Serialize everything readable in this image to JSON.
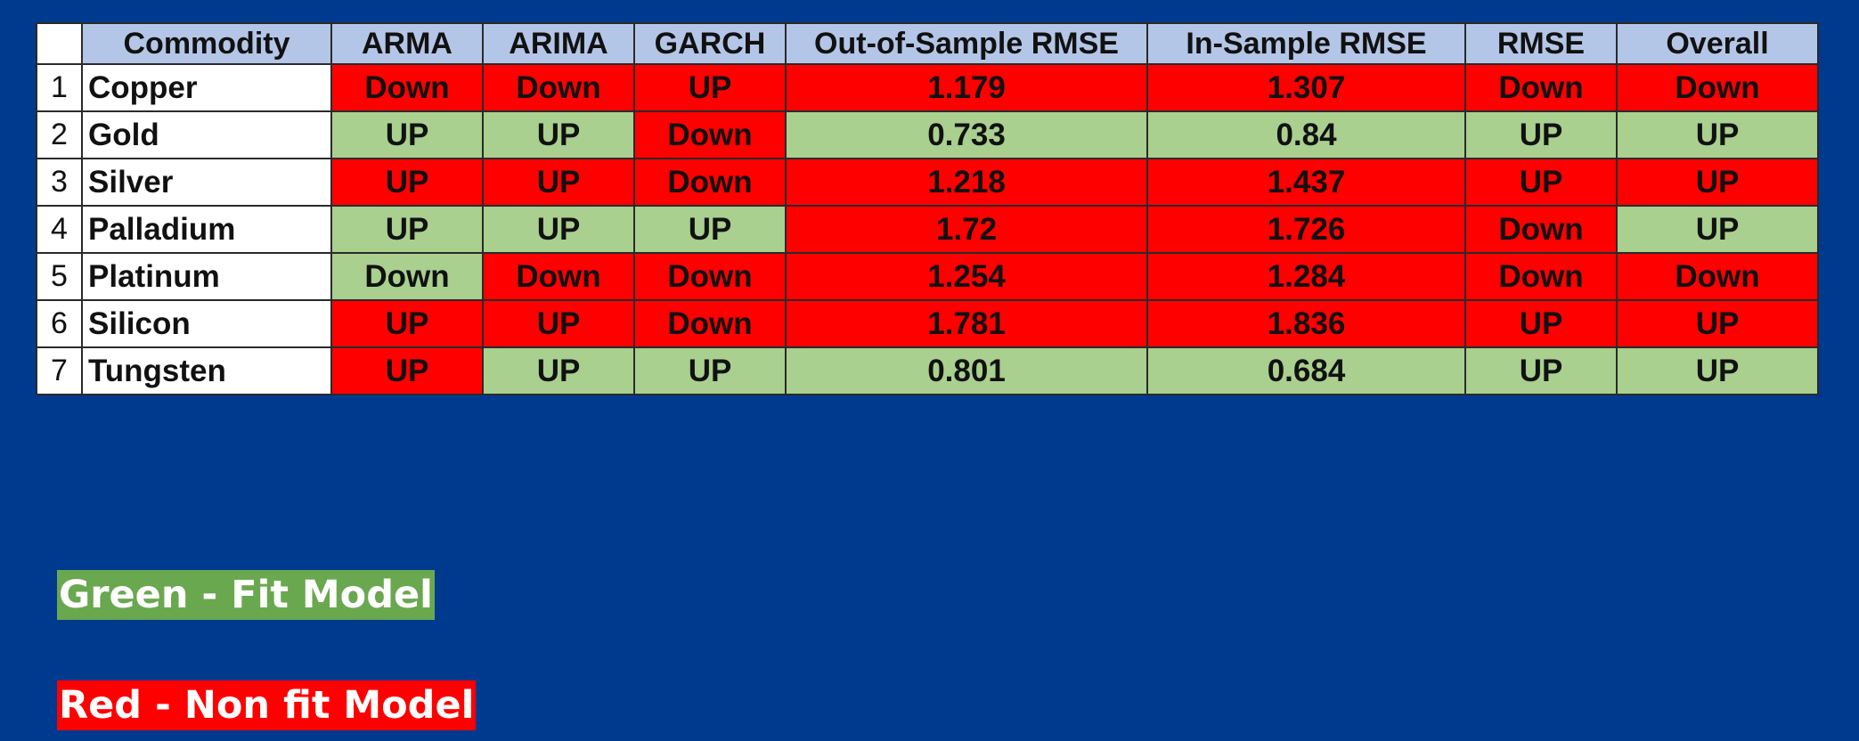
{
  "table": {
    "headers": [
      "Commodity",
      "ARMA",
      "ARIMA",
      "GARCH",
      "Out-of-Sample RMSE",
      "In-Sample RMSE",
      "RMSE",
      "Overall"
    ],
    "rows": [
      {
        "num": "1",
        "name": "Copper",
        "cells": [
          {
            "text": "Down",
            "status": "red"
          },
          {
            "text": "Down",
            "status": "red"
          },
          {
            "text": "UP",
            "status": "red"
          },
          {
            "text": "1.179",
            "status": "red"
          },
          {
            "text": "1.307",
            "status": "red"
          },
          {
            "text": "Down",
            "status": "red"
          },
          {
            "text": "Down",
            "status": "red"
          }
        ]
      },
      {
        "num": "2",
        "name": "Gold",
        "cells": [
          {
            "text": "UP",
            "status": "green"
          },
          {
            "text": "UP",
            "status": "green"
          },
          {
            "text": "Down",
            "status": "red"
          },
          {
            "text": "0.733",
            "status": "green"
          },
          {
            "text": "0.84",
            "status": "green"
          },
          {
            "text": "UP",
            "status": "green"
          },
          {
            "text": "UP",
            "status": "green"
          }
        ]
      },
      {
        "num": "3",
        "name": "Silver",
        "cells": [
          {
            "text": "UP",
            "status": "red"
          },
          {
            "text": "UP",
            "status": "red"
          },
          {
            "text": "Down",
            "status": "red"
          },
          {
            "text": "1.218",
            "status": "red"
          },
          {
            "text": "1.437",
            "status": "red"
          },
          {
            "text": "UP",
            "status": "red"
          },
          {
            "text": "UP",
            "status": "red"
          }
        ]
      },
      {
        "num": "4",
        "name": "Palladium",
        "cells": [
          {
            "text": "UP",
            "status": "green"
          },
          {
            "text": "UP",
            "status": "green"
          },
          {
            "text": "UP",
            "status": "green"
          },
          {
            "text": "1.72",
            "status": "red"
          },
          {
            "text": "1.726",
            "status": "red"
          },
          {
            "text": "Down",
            "status": "red"
          },
          {
            "text": "UP",
            "status": "green"
          }
        ]
      },
      {
        "num": "5",
        "name": "Platinum",
        "cells": [
          {
            "text": "Down",
            "status": "green"
          },
          {
            "text": "Down",
            "status": "red"
          },
          {
            "text": "Down",
            "status": "red"
          },
          {
            "text": "1.254",
            "status": "red"
          },
          {
            "text": "1.284",
            "status": "red"
          },
          {
            "text": "Down",
            "status": "red"
          },
          {
            "text": "Down",
            "status": "red"
          }
        ]
      },
      {
        "num": "6",
        "name": "Silicon",
        "cells": [
          {
            "text": "UP",
            "status": "red"
          },
          {
            "text": "UP",
            "status": "red"
          },
          {
            "text": "Down",
            "status": "red"
          },
          {
            "text": "1.781",
            "status": "red"
          },
          {
            "text": "1.836",
            "status": "red"
          },
          {
            "text": "UP",
            "status": "red"
          },
          {
            "text": "UP",
            "status": "red"
          }
        ]
      },
      {
        "num": "7",
        "name": "Tungsten",
        "cells": [
          {
            "text": "UP",
            "status": "red"
          },
          {
            "text": "UP",
            "status": "green"
          },
          {
            "text": "UP",
            "status": "green"
          },
          {
            "text": "0.801",
            "status": "green"
          },
          {
            "text": "0.684",
            "status": "green"
          },
          {
            "text": "UP",
            "status": "green"
          },
          {
            "text": "UP",
            "status": "green"
          }
        ]
      }
    ]
  },
  "legend": {
    "green_label": "Green - Fit Model",
    "red_label": "Red - Non fit Model"
  },
  "colors": {
    "background": "#003a8f",
    "header": "#b4c6e7",
    "green": "#a9d08e",
    "red": "#ff0000"
  }
}
